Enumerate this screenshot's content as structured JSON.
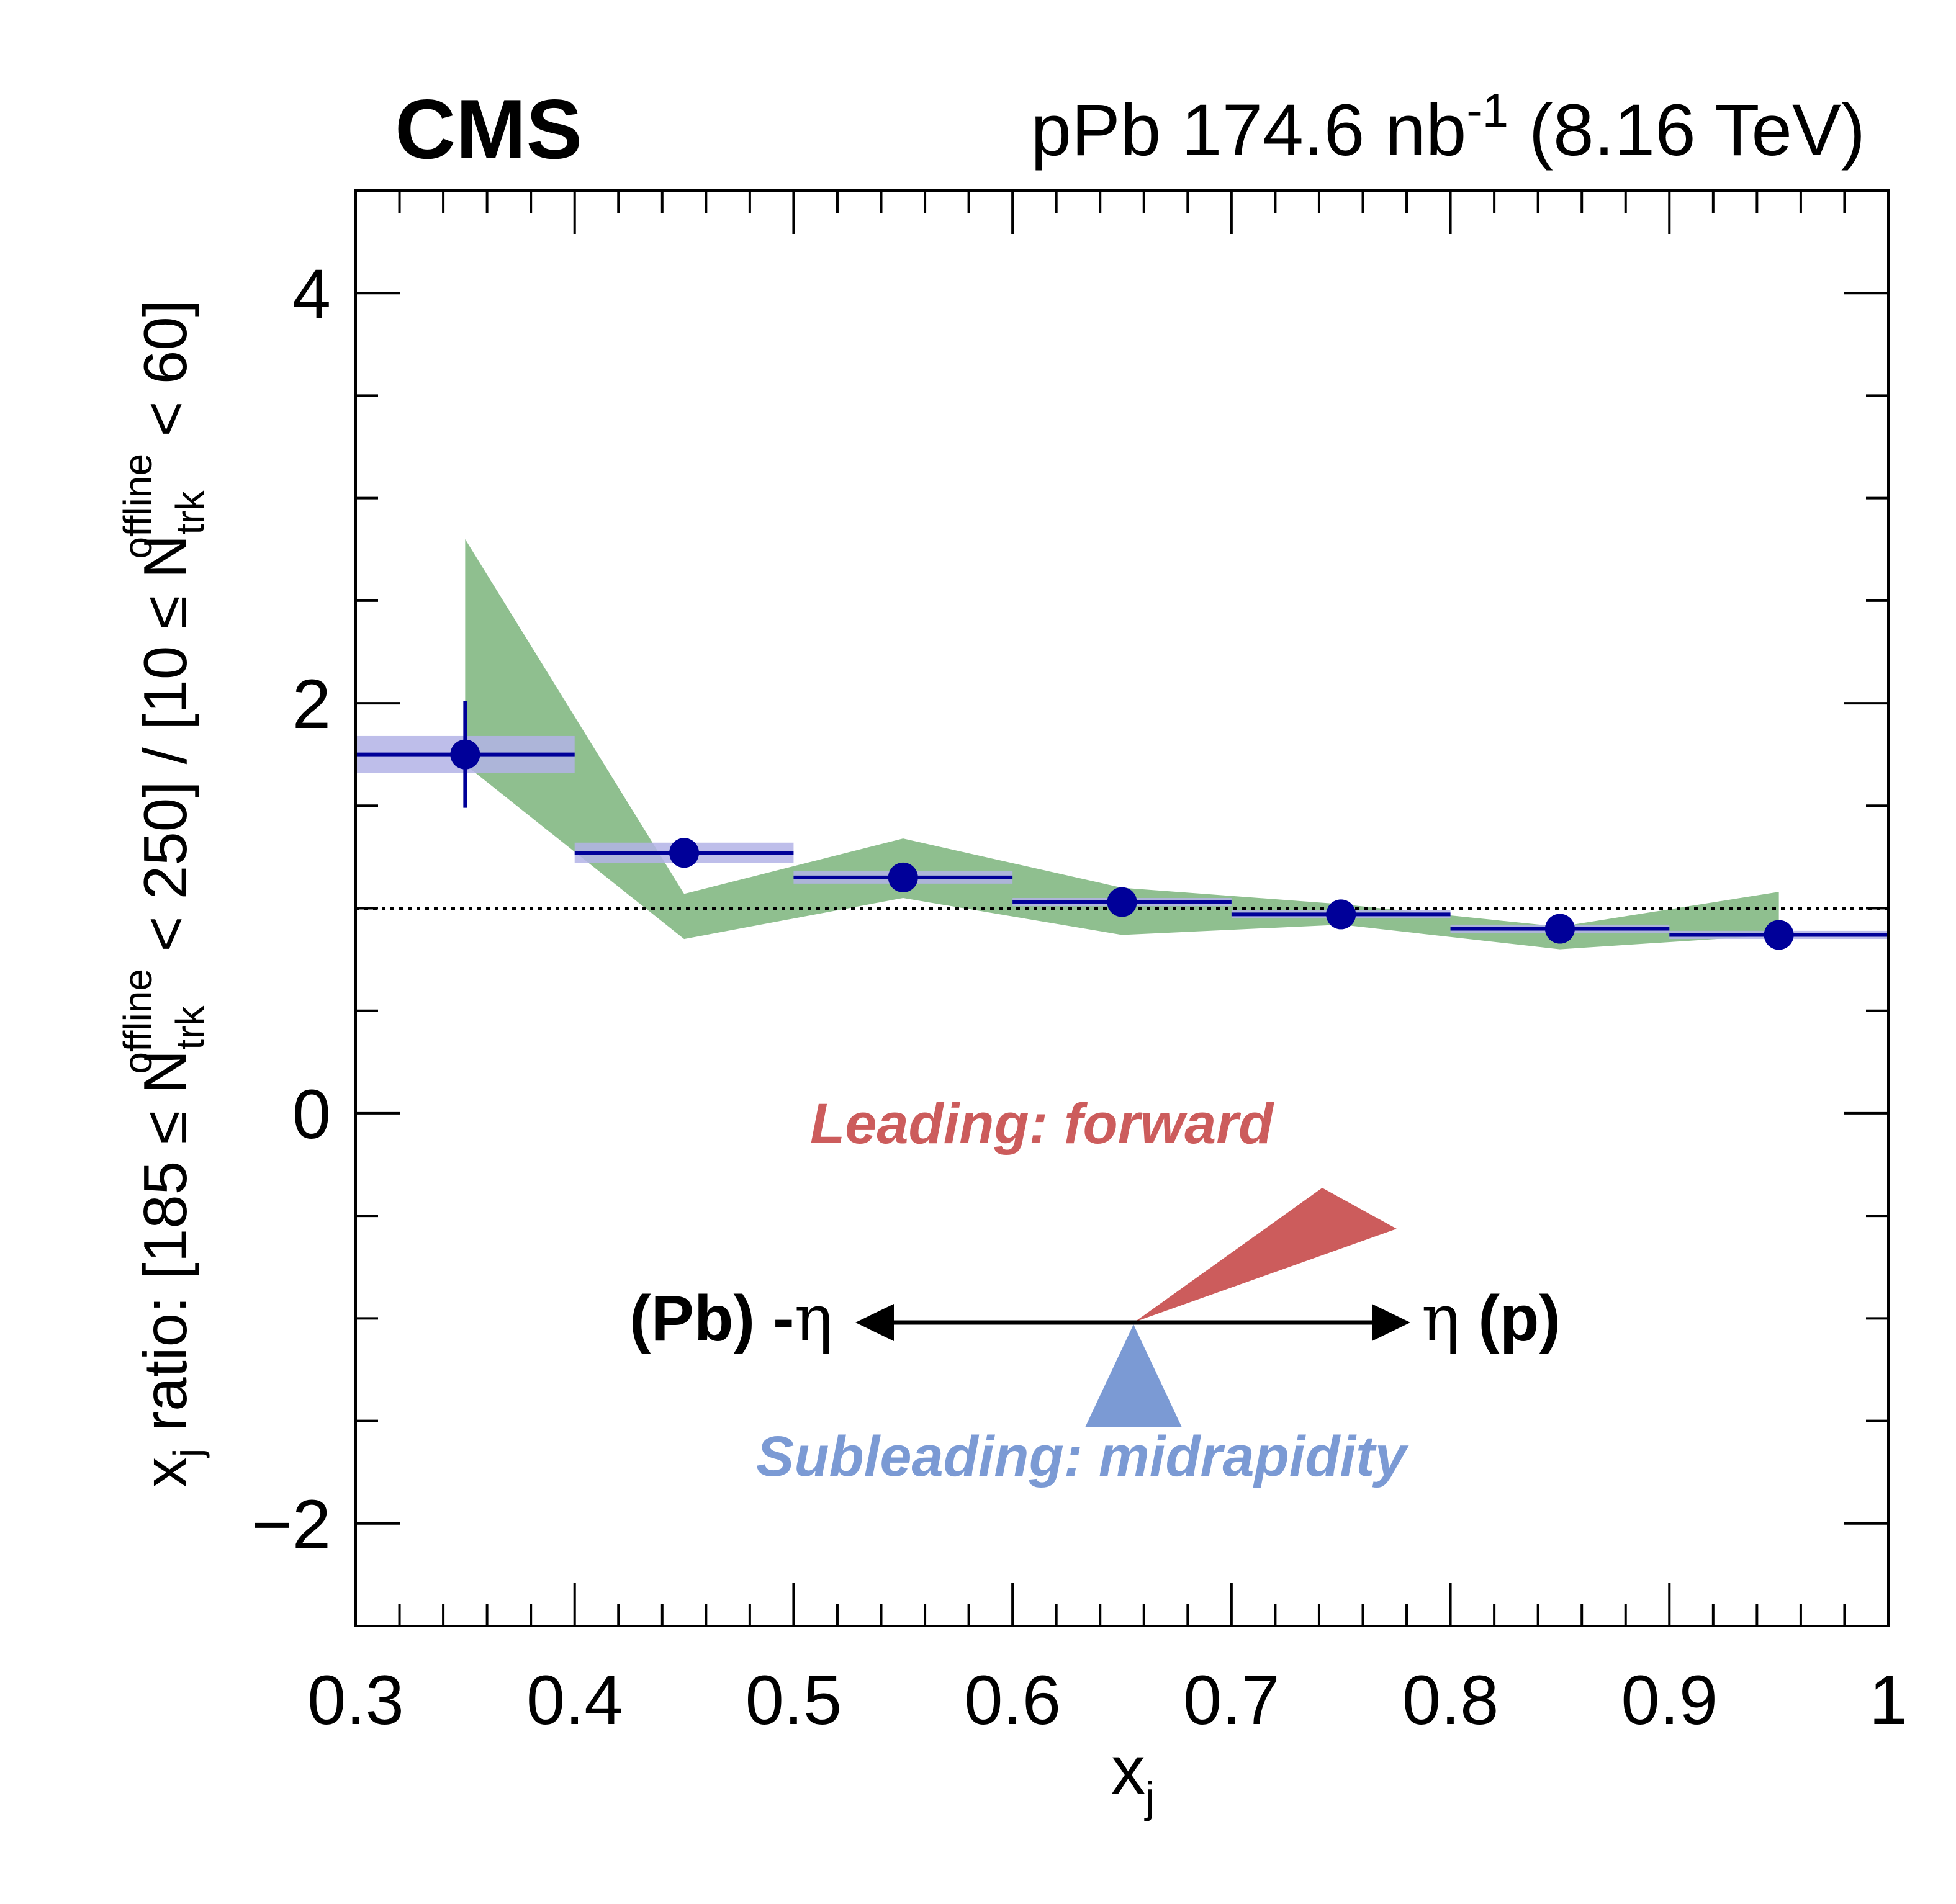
{
  "header": {
    "experiment": "CMS",
    "lumi_prefix": "pPb 174.6 nb",
    "lumi_exp": "-1",
    "energy": " (8.16 TeV)"
  },
  "axes": {
    "xlabel_main": "x",
    "xlabel_sub": "j",
    "ylabel": {
      "x": "x",
      "j": "j",
      "ratio_open": " ratio: [185 ≤ N",
      "trk": "trk",
      "offline": "offline",
      "mid": " < 250] / [10 ≤ N",
      "close": " < 60]"
    }
  },
  "annotations": {
    "leading": "Leading: forward",
    "subleading": "Subleading: midrapidity",
    "left_label": "(Pb) -",
    "left_eta": "η",
    "right_eta": "η",
    "right_label": " (p)"
  },
  "colors": {
    "points": "#000099",
    "stat_box": "#b3b3e6",
    "model_band": "#8fbf8f",
    "leading": "#cc5c5c",
    "subleading": "#7b9ad4",
    "axis": "#000000"
  },
  "chart_data": {
    "type": "scatter",
    "xlim": [
      0.3,
      1.0
    ],
    "ylim": [
      -2.5,
      4.5
    ],
    "xticks": [
      0.3,
      0.4,
      0.5,
      0.6,
      0.7,
      0.8,
      0.9,
      1.0
    ],
    "xtick_labels": [
      "0.3",
      "0.4",
      "0.5",
      "0.6",
      "0.7",
      "0.8",
      "0.9",
      "1"
    ],
    "yticks": [
      -2,
      0,
      2,
      4
    ],
    "ytick_labels": [
      "−2",
      "0",
      "2",
      "4"
    ],
    "reference_line": 1.0,
    "series": [
      {
        "type": "points",
        "x": [
          0.35,
          0.45,
          0.55,
          0.65,
          0.75,
          0.85,
          0.95
        ],
        "bin_edges": [
          [
            0.3,
            0.4
          ],
          [
            0.4,
            0.5
          ],
          [
            0.5,
            0.6
          ],
          [
            0.6,
            0.7
          ],
          [
            0.7,
            0.8
          ],
          [
            0.8,
            0.9
          ],
          [
            0.9,
            1.0
          ]
        ],
        "y": [
          1.75,
          1.27,
          1.15,
          1.03,
          0.97,
          0.9,
          0.87
        ],
        "stat_err": [
          0.26,
          0.02,
          0.02,
          0.02,
          0.02,
          0.02,
          0.02
        ],
        "syst_err": [
          0.09,
          0.05,
          0.03,
          0.02,
          0.02,
          0.02,
          0.02
        ]
      },
      {
        "type": "band",
        "x": [
          0.35,
          0.45,
          0.55,
          0.65,
          0.75,
          0.85,
          0.95
        ],
        "low": [
          1.7,
          0.85,
          1.05,
          0.87,
          0.92,
          0.8,
          0.87
        ],
        "high": [
          2.8,
          1.07,
          1.34,
          1.1,
          1.02,
          0.91,
          1.08
        ]
      }
    ]
  }
}
